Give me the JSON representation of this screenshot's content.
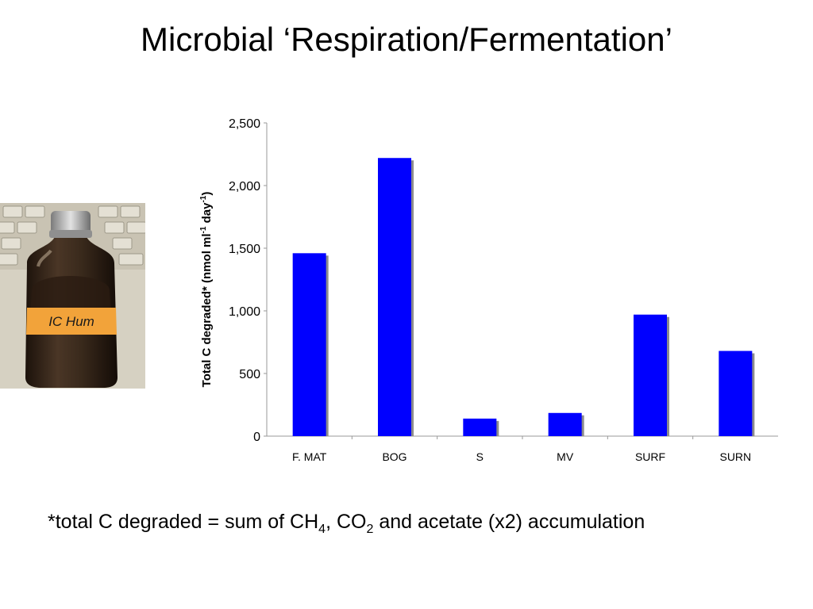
{
  "title": "Microbial ‘Respiration/Fermentation’",
  "photo": {
    "bottle_label": "IC Hum"
  },
  "chart_data": {
    "type": "bar",
    "categories": [
      "F. MAT",
      "BOG",
      "S",
      "MV",
      "SURF",
      "SURN"
    ],
    "values": [
      1460,
      2220,
      140,
      185,
      970,
      680
    ],
    "ylabel": {
      "part1": "Total C degraded* (nmol ml",
      "sup1": "-1",
      "part2": " day",
      "sup2": "-1",
      "part3": ")"
    },
    "ylim": [
      0,
      2500
    ],
    "yticks": [
      0,
      500,
      1000,
      1500,
      2000,
      2500
    ],
    "ytick_labels": [
      "0",
      "500",
      "1,000",
      "1,500",
      "2,000",
      "2,500"
    ],
    "grid": false,
    "legend": "none",
    "colors": {
      "bar": "#0000ff",
      "shadow": "#8c8c8c"
    }
  },
  "footnote": {
    "pre": "*total C degraded = sum of CH",
    "sub1": "4",
    "mid": ", CO",
    "sub2": "2",
    "post": " and acetate (x2) accumulation"
  }
}
